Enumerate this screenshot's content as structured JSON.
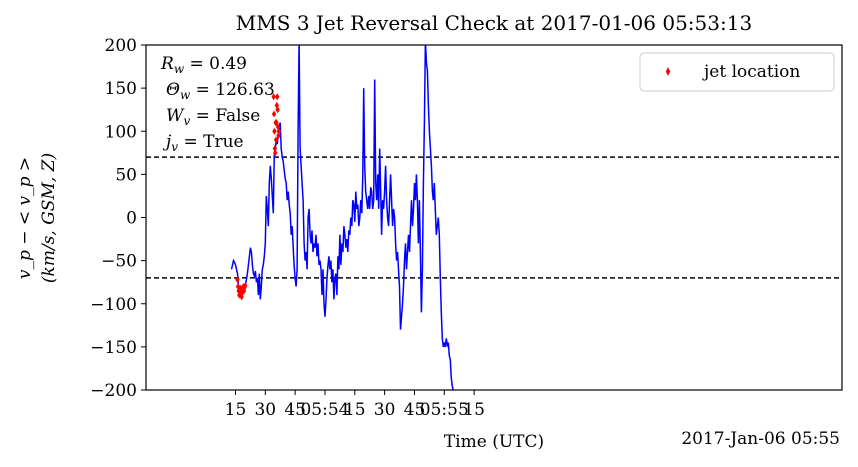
{
  "chart_data": {
    "type": "line",
    "title": "MMS 3 Jet Reversal Check at 2017-01-06 05:53:13",
    "xlabel": "Time (UTC)",
    "ylabel_line1": "v_p − < v_p >",
    "ylabel_line2": "(km/s, GSM, Z)",
    "offset_label": "2017-Jan-06 05:55",
    "xlim": [
      570.0,
      920.0
    ],
    "ylim": [
      -200,
      200
    ],
    "x_unit": "seconds after 05:44:00 UTC",
    "x_ticks": [
      {
        "x": 615,
        "label": "15"
      },
      {
        "x": 630,
        "label": "30"
      },
      {
        "x": 645,
        "label": "45"
      },
      {
        "x": 660,
        "label": "05:54"
      },
      {
        "x": 675,
        "label": "15"
      },
      {
        "x": 690,
        "label": "30"
      },
      {
        "x": 705,
        "label": "45"
      },
      {
        "x": 720,
        "label": "05:55"
      },
      {
        "x": 735,
        "label": "15"
      }
    ],
    "y_ticks": [
      200,
      150,
      100,
      50,
      0,
      -50,
      -100,
      -150,
      -200
    ],
    "thresholds": [
      70,
      -70
    ],
    "annotations": [
      {
        "name": "R_w",
        "text": "= 0.49"
      },
      {
        "name": "Θ_w",
        "text": "= 126.63"
      },
      {
        "name": "W_v",
        "text": "= False"
      },
      {
        "name": "j_v",
        "text": "= True"
      }
    ],
    "legend": {
      "position": "top-right",
      "entries": [
        {
          "name": "jet location",
          "color": "#ff0000",
          "marker": "diamond"
        }
      ]
    },
    "series": [
      {
        "color": "#0000ff",
        "points": [
          [
            13.0,
            -60
          ],
          [
            13.5,
            -55
          ],
          [
            14.0,
            -50
          ],
          [
            14.5,
            -52
          ],
          [
            15.0,
            -55
          ],
          [
            15.5,
            -60
          ],
          [
            16.0,
            -65
          ],
          [
            16.5,
            -80
          ],
          [
            17.0,
            -85
          ],
          [
            17.5,
            -88
          ],
          [
            18.0,
            -84
          ],
          [
            18.5,
            -90
          ],
          [
            19.0,
            -86
          ],
          [
            19.5,
            -80
          ],
          [
            20.0,
            -78
          ],
          [
            20.5,
            -72
          ],
          [
            21.0,
            -65
          ],
          [
            21.5,
            -55
          ],
          [
            22.0,
            -45
          ],
          [
            22.5,
            -35
          ],
          [
            23.0,
            -40
          ],
          [
            23.5,
            -55
          ],
          [
            24.0,
            -65
          ],
          [
            24.5,
            -68
          ],
          [
            25.0,
            -62
          ],
          [
            25.5,
            -75
          ],
          [
            26.0,
            -70
          ],
          [
            26.5,
            -90
          ],
          [
            27.0,
            -65
          ],
          [
            27.5,
            -95
          ],
          [
            28.0,
            -80
          ],
          [
            28.5,
            -60
          ],
          [
            29.0,
            -55
          ],
          [
            29.5,
            -45
          ],
          [
            30.0,
            -30
          ],
          [
            30.5,
            25
          ],
          [
            31.0,
            10
          ],
          [
            31.5,
            -10
          ],
          [
            32.0,
            40
          ],
          [
            32.5,
            60
          ],
          [
            33.0,
            45
          ],
          [
            33.5,
            25
          ],
          [
            34.0,
            5
          ],
          [
            34.5,
            75
          ],
          [
            35.0,
            80
          ],
          [
            35.5,
            90
          ],
          [
            36.0,
            85
          ],
          [
            36.5,
            95
          ],
          [
            37.0,
            105
          ],
          [
            37.5,
            110
          ],
          [
            38.0,
            80
          ],
          [
            38.5,
            70
          ],
          [
            39.0,
            65
          ],
          [
            39.5,
            55
          ],
          [
            40.0,
            45
          ],
          [
            40.5,
            40
          ],
          [
            41.0,
            20
          ],
          [
            41.5,
            30
          ],
          [
            42.0,
            15
          ],
          [
            42.5,
            5
          ],
          [
            43.0,
            -20
          ],
          [
            43.5,
            -10
          ],
          [
            44.0,
            -35
          ],
          [
            44.5,
            -55
          ],
          [
            45.0,
            -70
          ],
          [
            45.5,
            -80
          ],
          [
            46.0,
            -60
          ],
          [
            46.5,
            100
          ],
          [
            47.0,
            205
          ],
          [
            47.5,
            80
          ],
          [
            48.0,
            60
          ],
          [
            48.5,
            40
          ],
          [
            49.0,
            20
          ],
          [
            49.5,
            -30
          ],
          [
            50.0,
            -50
          ],
          [
            50.5,
            -40
          ],
          [
            51.0,
            -60
          ],
          [
            51.5,
            0
          ],
          [
            52.0,
            10
          ],
          [
            52.5,
            -20
          ],
          [
            53.0,
            -30
          ],
          [
            53.5,
            -15
          ],
          [
            54.0,
            -40
          ],
          [
            54.5,
            -30
          ],
          [
            55.0,
            -35
          ],
          [
            55.5,
            -20
          ],
          [
            56.0,
            -45
          ],
          [
            56.5,
            -30
          ],
          [
            57.0,
            -55
          ],
          [
            57.5,
            -50
          ],
          [
            58.0,
            -60
          ],
          [
            58.5,
            -90
          ],
          [
            59.0,
            -60
          ],
          [
            59.5,
            -100
          ],
          [
            60.0,
            -115
          ],
          [
            60.5,
            -95
          ],
          [
            61.0,
            -70
          ],
          [
            61.5,
            -55
          ],
          [
            62.0,
            -45
          ],
          [
            62.5,
            -60
          ],
          [
            63.0,
            -50
          ],
          [
            63.5,
            -75
          ],
          [
            64.0,
            -60
          ],
          [
            64.5,
            -95
          ],
          [
            65.0,
            -70
          ],
          [
            65.5,
            -65
          ],
          [
            66.0,
            -90
          ],
          [
            66.5,
            -45
          ],
          [
            67.0,
            -60
          ],
          [
            67.5,
            -20
          ],
          [
            68.0,
            -55
          ],
          [
            68.5,
            -30
          ],
          [
            69.0,
            -40
          ],
          [
            69.5,
            -10
          ],
          [
            70.0,
            -20
          ],
          [
            70.5,
            -35
          ],
          [
            71.0,
            -25
          ],
          [
            71.5,
            -40
          ],
          [
            72.0,
            -15
          ],
          [
            72.5,
            -20
          ],
          [
            73.0,
            0
          ],
          [
            73.5,
            -10
          ],
          [
            74.0,
            20
          ],
          [
            74.5,
            15
          ],
          [
            75.0,
            -5
          ],
          [
            75.5,
            30
          ],
          [
            76.0,
            10
          ],
          [
            76.5,
            15
          ],
          [
            77.0,
            -10
          ],
          [
            77.5,
            0
          ],
          [
            78.0,
            20
          ],
          [
            78.5,
            5
          ],
          [
            79.0,
            50
          ],
          [
            79.5,
            150
          ],
          [
            80.0,
            60
          ],
          [
            80.5,
            30
          ],
          [
            81.0,
            20
          ],
          [
            81.5,
            10
          ],
          [
            82.0,
            25
          ],
          [
            82.5,
            10
          ],
          [
            83.0,
            35
          ],
          [
            83.5,
            30
          ],
          [
            84.0,
            10
          ],
          [
            84.5,
            20
          ],
          [
            85.0,
            160
          ],
          [
            85.5,
            40
          ],
          [
            86.0,
            20
          ],
          [
            86.5,
            50
          ],
          [
            87.0,
            10
          ],
          [
            87.5,
            80
          ],
          [
            88.0,
            30
          ],
          [
            88.5,
            -20
          ],
          [
            89.0,
            20
          ],
          [
            89.5,
            10
          ],
          [
            90.0,
            30
          ],
          [
            90.5,
            60
          ],
          [
            91.0,
            20
          ],
          [
            91.5,
            0
          ],
          [
            92.0,
            -10
          ],
          [
            92.5,
            20
          ],
          [
            93.0,
            50
          ],
          [
            93.5,
            20
          ],
          [
            94.0,
            -10
          ],
          [
            94.5,
            10
          ],
          [
            95.0,
            0
          ],
          [
            95.5,
            -30
          ],
          [
            96.0,
            -50
          ],
          [
            96.5,
            -40
          ],
          [
            97.0,
            -60
          ],
          [
            97.5,
            -80
          ],
          [
            98.0,
            -130
          ],
          [
            98.5,
            -115
          ],
          [
            99.0,
            -100
          ],
          [
            99.5,
            -80
          ],
          [
            100.0,
            -50
          ],
          [
            100.5,
            -30
          ],
          [
            101.0,
            -60
          ],
          [
            101.5,
            -40
          ],
          [
            102.0,
            -20
          ],
          [
            102.5,
            -40
          ],
          [
            103.0,
            -10
          ],
          [
            103.5,
            20
          ],
          [
            104.0,
            -10
          ],
          [
            104.5,
            10
          ],
          [
            105.0,
            40
          ],
          [
            105.5,
            20
          ],
          [
            106.0,
            50
          ],
          [
            106.5,
            20
          ],
          [
            107.0,
            -30
          ],
          [
            107.5,
            20
          ],
          [
            108.0,
            -40
          ],
          [
            108.5,
            -110
          ],
          [
            109.0,
            -60
          ],
          [
            109.5,
            40
          ],
          [
            110.0,
            110
          ],
          [
            110.5,
            205
          ],
          [
            111.0,
            180
          ],
          [
            111.5,
            170
          ],
          [
            112.0,
            130
          ],
          [
            112.5,
            100
          ],
          [
            113.0,
            80
          ],
          [
            113.5,
            60
          ],
          [
            114.0,
            30
          ],
          [
            114.5,
            20
          ],
          [
            115.0,
            40
          ],
          [
            115.5,
            10
          ],
          [
            116.0,
            -20
          ],
          [
            116.5,
            -10
          ],
          [
            117.0,
            0
          ],
          [
            117.5,
            -20
          ],
          [
            118.0,
            -70
          ],
          [
            118.5,
            -110
          ],
          [
            119.0,
            -140
          ],
          [
            119.5,
            -150
          ],
          [
            120.0,
            -145
          ],
          [
            120.5,
            -150
          ],
          [
            121.0,
            -140
          ],
          [
            121.5,
            -148
          ],
          [
            122.0,
            -145
          ],
          [
            122.5,
            -160
          ],
          [
            123.0,
            -165
          ],
          [
            123.5,
            -185
          ],
          [
            124.0,
            -195
          ],
          [
            124.5,
            -200
          ]
        ]
      },
      {
        "name": "jet location",
        "color": "#ff0000",
        "points": [
          [
            16.0,
            -72
          ],
          [
            16.3,
            -80
          ],
          [
            16.6,
            -85
          ],
          [
            16.9,
            -90
          ],
          [
            17.2,
            -86
          ],
          [
            17.5,
            -82
          ],
          [
            17.8,
            -88
          ],
          [
            18.1,
            -92
          ],
          [
            18.4,
            -87
          ],
          [
            18.7,
            -84
          ],
          [
            19.0,
            -80
          ],
          [
            19.3,
            -85
          ],
          [
            19.6,
            -81
          ],
          [
            19.9,
            -79
          ],
          [
            34.2,
            140
          ],
          [
            34.4,
            120
          ],
          [
            34.6,
            100
          ],
          [
            34.8,
            80
          ],
          [
            35.0,
            75
          ],
          [
            35.2,
            110
          ],
          [
            35.4,
            90
          ],
          [
            35.6,
            110
          ],
          [
            35.8,
            130
          ],
          [
            36.0,
            140
          ],
          [
            36.2,
            125
          ],
          [
            36.4,
            105
          ],
          [
            36.6,
            95
          ],
          [
            36.8,
            100
          ]
        ]
      }
    ]
  }
}
